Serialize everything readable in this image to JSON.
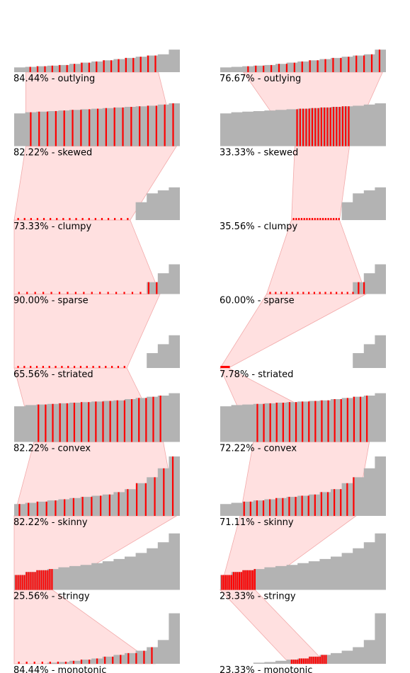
{
  "chart_data": {
    "type": "area",
    "colors": {
      "area": "#b3b3b3",
      "highlight": "#ff0000",
      "band": "#ffcccc",
      "band_stroke": "#f2aaaa"
    },
    "columns": [
      {
        "panels": [
          {
            "label": "84.44% - outlying",
            "curve": [
              8,
              9,
              10,
              11,
              12,
              14,
              16,
              18,
              20,
              22,
              24,
              26,
              28,
              30,
              38
            ],
            "band": [
              0.07,
              0.87
            ]
          },
          {
            "label": "82.22% - skewed",
            "curve": [
              55,
              57,
              58,
              59,
              60,
              61,
              62,
              63,
              64,
              65,
              66,
              67,
              68,
              70,
              72
            ],
            "band": [
              0.07,
              0.98
            ]
          },
          {
            "label": "73.33% - clumpy",
            "curve": [
              0,
              0,
              0,
              0,
              0,
              0,
              0,
              0,
              0,
              0,
              0,
              0,
              0,
              0,
              0
            ],
            "band": [
              0.0,
              0.7
            ],
            "tail": [
              0,
              0,
              0,
              0,
              0,
              0,
              0,
              0,
              0,
              0,
              0,
              30,
              45,
              50,
              55
            ]
          },
          {
            "label": "90.00% - sparse",
            "curve": [
              0,
              0,
              0,
              0,
              0,
              0,
              0,
              0,
              0,
              0,
              0,
              0,
              0,
              0,
              0
            ],
            "band": [
              0.0,
              0.88
            ],
            "tail": [
              0,
              0,
              0,
              0,
              0,
              0,
              0,
              0,
              0,
              0,
              0,
              0,
              20,
              35,
              50
            ]
          },
          {
            "label": "65.56% - striated",
            "curve": [
              0,
              0,
              0,
              0,
              0,
              0,
              0,
              0,
              0,
              0,
              0,
              0,
              0,
              0,
              0
            ],
            "band": [
              0.0,
              0.68
            ],
            "tail": [
              0,
              0,
              0,
              0,
              0,
              0,
              0,
              0,
              0,
              0,
              0,
              0,
              25,
              40,
              55
            ]
          },
          {
            "label": "82.22% - convex",
            "curve": [
              60,
              62,
              63,
              64,
              65,
              66,
              67,
              68,
              69,
              70,
              72,
              74,
              76,
              78,
              82
            ],
            "band": [
              0.12,
              0.9
            ]
          },
          {
            "label": "82.22% - skinny",
            "curve": [
              20,
              22,
              24,
              26,
              28,
              30,
              32,
              34,
              36,
              40,
              45,
              55,
              65,
              80,
              100
            ],
            "band": [
              0.0,
              0.98
            ]
          },
          {
            "label": "25.56% - stringy",
            "curve": [
              25,
              30,
              33,
              35,
              38,
              40,
              42,
              45,
              48,
              52,
              56,
              62,
              70,
              80,
              95
            ],
            "band": [
              0.0,
              0.23
            ]
          },
          {
            "label": "84.44% - monotonic",
            "curve": [
              0,
              0,
              0,
              2,
              3,
              5,
              7,
              9,
              12,
              15,
              18,
              22,
              28,
              40,
              85
            ],
            "band": [
              0.0,
              0.85
            ]
          }
        ]
      },
      {
        "panels": [
          {
            "label": "76.67% - outlying",
            "curve": [
              8,
              9,
              10,
              11,
              12,
              14,
              16,
              18,
              20,
              22,
              24,
              26,
              28,
              30,
              38
            ],
            "band": [
              0.14,
              0.98
            ]
          },
          {
            "label": "33.33% - skewed",
            "curve": [
              55,
              57,
              58,
              59,
              60,
              61,
              62,
              63,
              64,
              65,
              66,
              67,
              68,
              70,
              72
            ],
            "band": [
              0.45,
              0.78
            ]
          },
          {
            "label": "35.56% - clumpy",
            "curve": [
              0,
              0,
              0,
              0,
              0,
              0,
              0,
              0,
              0,
              0,
              0,
              0,
              0,
              0,
              0
            ],
            "band": [
              0.43,
              0.72
            ],
            "tail": [
              0,
              0,
              0,
              0,
              0,
              0,
              0,
              0,
              0,
              0,
              0,
              30,
              45,
              50,
              55
            ]
          },
          {
            "label": "60.00% - sparse",
            "curve": [
              0,
              0,
              0,
              0,
              0,
              0,
              0,
              0,
              0,
              0,
              0,
              0,
              0,
              0,
              0
            ],
            "band": [
              0.28,
              0.88
            ],
            "tail": [
              0,
              0,
              0,
              0,
              0,
              0,
              0,
              0,
              0,
              0,
              0,
              0,
              20,
              35,
              50
            ]
          },
          {
            "label": "7.78% - striated",
            "curve": [
              0,
              0,
              0,
              0,
              0,
              0,
              0,
              0,
              0,
              0,
              0,
              0,
              0,
              0,
              0
            ],
            "band": [
              0.0,
              0.05
            ],
            "tail": [
              0,
              0,
              0,
              0,
              0,
              0,
              0,
              0,
              0,
              0,
              0,
              0,
              25,
              40,
              55
            ]
          },
          {
            "label": "72.22% - convex",
            "curve": [
              60,
              62,
              63,
              64,
              65,
              66,
              67,
              68,
              69,
              70,
              72,
              74,
              76,
              78,
              82
            ],
            "band": [
              0.2,
              0.9
            ]
          },
          {
            "label": "71.11% - skinny",
            "curve": [
              20,
              22,
              24,
              26,
              28,
              30,
              32,
              34,
              36,
              40,
              45,
              55,
              65,
              80,
              100
            ],
            "band": [
              0.12,
              0.82
            ]
          },
          {
            "label": "23.33% - stringy",
            "curve": [
              25,
              30,
              33,
              35,
              38,
              40,
              42,
              45,
              48,
              52,
              56,
              62,
              70,
              80,
              95
            ],
            "band": [
              0.0,
              0.21
            ]
          },
          {
            "label": "23.33% - monotonic",
            "curve": [
              0,
              0,
              0,
              2,
              3,
              5,
              7,
              9,
              12,
              15,
              18,
              22,
              28,
              40,
              85
            ],
            "band": [
              0.42,
              0.64
            ]
          }
        ]
      }
    ]
  }
}
